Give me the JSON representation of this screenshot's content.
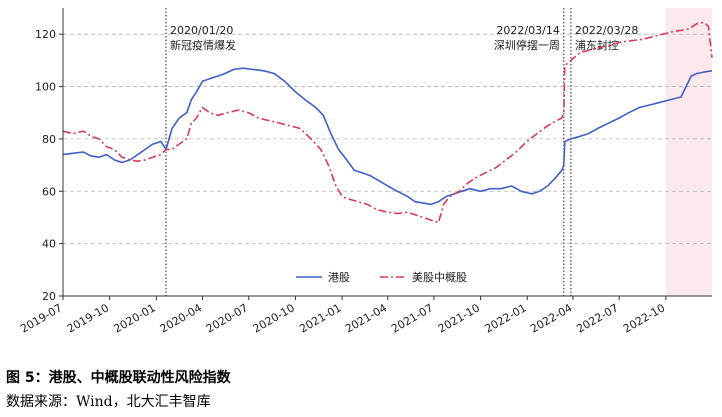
{
  "figure": {
    "title": "图 5：港股、中概股联动性风险指数",
    "source": "数据来源：Wind，北大汇丰智库"
  },
  "chart_data": {
    "type": "line",
    "xlim": [
      "2019-07-01",
      "2022-12-31"
    ],
    "ylim": [
      20,
      130
    ],
    "yticks": [
      20,
      40,
      60,
      80,
      100,
      120
    ],
    "xticks": [
      {
        "date": "2019-07-01",
        "label": "2019-07"
      },
      {
        "date": "2019-10-01",
        "label": "2019-10"
      },
      {
        "date": "2020-01-01",
        "label": "2020-01"
      },
      {
        "date": "2020-04-01",
        "label": "2020-04"
      },
      {
        "date": "2020-07-01",
        "label": "2020-07"
      },
      {
        "date": "2020-10-01",
        "label": "2020-10"
      },
      {
        "date": "2021-01-01",
        "label": "2021-01"
      },
      {
        "date": "2021-04-01",
        "label": "2021-04"
      },
      {
        "date": "2021-07-01",
        "label": "2021-07"
      },
      {
        "date": "2021-10-01",
        "label": "2021-10"
      },
      {
        "date": "2022-01-01",
        "label": "2022-01"
      },
      {
        "date": "2022-04-01",
        "label": "2022-04"
      },
      {
        "date": "2022-07-01",
        "label": "2022-07"
      },
      {
        "date": "2022-10-01",
        "label": "2022-10"
      }
    ],
    "grid": "horizontal-dashed",
    "legend_position": "bottom-center",
    "shaded_region": {
      "from": "2022-10-01",
      "to": "2022-12-31",
      "color": "#fbe9ec"
    },
    "events": [
      {
        "date": "2020-01-20",
        "label_line1": "2020/01/20",
        "label_line2": "新冠疫情爆发",
        "label_side": "right"
      },
      {
        "date": "2022-03-14",
        "label_line1": "2022/03/14",
        "label_line2": "深圳停摆一周",
        "label_side": "left"
      },
      {
        "date": "2022-03-28",
        "label_line1": "2022/03/28",
        "label_line2": "浦东封控",
        "label_side": "right"
      }
    ],
    "series": [
      {
        "name": "港股",
        "color": "#3f5fc9",
        "style": "solid",
        "points": [
          [
            "2019-07-01",
            74
          ],
          [
            "2019-07-20",
            74.5
          ],
          [
            "2019-08-10",
            75
          ],
          [
            "2019-08-25",
            73.5
          ],
          [
            "2019-09-10",
            73
          ],
          [
            "2019-09-25",
            74
          ],
          [
            "2019-10-10",
            72
          ],
          [
            "2019-10-25",
            71
          ],
          [
            "2019-11-10",
            72
          ],
          [
            "2019-11-25",
            74
          ],
          [
            "2019-12-10",
            76
          ],
          [
            "2019-12-25",
            78
          ],
          [
            "2020-01-10",
            79
          ],
          [
            "2020-01-20",
            76
          ],
          [
            "2020-02-01",
            84
          ],
          [
            "2020-02-15",
            88
          ],
          [
            "2020-03-01",
            90
          ],
          [
            "2020-03-10",
            95
          ],
          [
            "2020-03-20",
            98
          ],
          [
            "2020-04-01",
            102
          ],
          [
            "2020-04-15",
            103
          ],
          [
            "2020-05-01",
            104
          ],
          [
            "2020-05-15",
            105
          ],
          [
            "2020-06-01",
            106.5
          ],
          [
            "2020-06-20",
            107
          ],
          [
            "2020-07-10",
            106.5
          ],
          [
            "2020-07-31",
            106
          ],
          [
            "2020-08-20",
            105
          ],
          [
            "2020-09-10",
            102
          ],
          [
            "2020-10-01",
            98
          ],
          [
            "2020-10-20",
            95
          ],
          [
            "2020-11-10",
            92
          ],
          [
            "2020-11-25",
            89
          ],
          [
            "2020-12-10",
            82
          ],
          [
            "2020-12-25",
            76
          ],
          [
            "2021-01-10",
            72
          ],
          [
            "2021-01-25",
            68
          ],
          [
            "2021-02-10",
            67
          ],
          [
            "2021-02-25",
            66
          ],
          [
            "2021-03-15",
            64
          ],
          [
            "2021-04-01",
            62
          ],
          [
            "2021-04-20",
            60
          ],
          [
            "2021-05-10",
            58
          ],
          [
            "2021-05-25",
            56
          ],
          [
            "2021-06-10",
            55.5
          ],
          [
            "2021-06-25",
            55
          ],
          [
            "2021-07-10",
            56
          ],
          [
            "2021-07-25",
            58
          ],
          [
            "2021-08-10",
            59
          ],
          [
            "2021-08-25",
            60
          ],
          [
            "2021-09-10",
            61
          ],
          [
            "2021-10-01",
            60
          ],
          [
            "2021-10-20",
            61
          ],
          [
            "2021-11-10",
            61
          ],
          [
            "2021-12-01",
            62
          ],
          [
            "2021-12-20",
            60
          ],
          [
            "2022-01-10",
            59
          ],
          [
            "2022-01-25",
            60
          ],
          [
            "2022-02-10",
            62
          ],
          [
            "2022-02-25",
            65
          ],
          [
            "2022-03-10",
            68
          ],
          [
            "2022-03-14",
            70
          ],
          [
            "2022-03-16",
            79
          ],
          [
            "2022-03-28",
            80
          ],
          [
            "2022-04-15",
            81
          ],
          [
            "2022-05-01",
            82
          ],
          [
            "2022-05-20",
            84
          ],
          [
            "2022-06-10",
            86
          ],
          [
            "2022-07-01",
            88
          ],
          [
            "2022-07-20",
            90
          ],
          [
            "2022-08-10",
            92
          ],
          [
            "2022-08-31",
            93
          ],
          [
            "2022-09-20",
            94
          ],
          [
            "2022-10-10",
            95
          ],
          [
            "2022-10-31",
            96
          ],
          [
            "2022-11-10",
            100
          ],
          [
            "2022-11-20",
            104
          ],
          [
            "2022-12-01",
            105
          ],
          [
            "2022-12-15",
            105.5
          ],
          [
            "2022-12-31",
            106
          ]
        ]
      },
      {
        "name": "美股中概股",
        "color": "#d93a5a",
        "style": "dashdot",
        "points": [
          [
            "2019-07-01",
            83
          ],
          [
            "2019-07-20",
            82
          ],
          [
            "2019-08-10",
            83
          ],
          [
            "2019-08-25",
            81
          ],
          [
            "2019-09-10",
            80
          ],
          [
            "2019-09-25",
            77
          ],
          [
            "2019-10-10",
            76
          ],
          [
            "2019-10-25",
            73
          ],
          [
            "2019-11-10",
            72
          ],
          [
            "2019-11-25",
            71.5
          ],
          [
            "2019-12-10",
            72
          ],
          [
            "2019-12-25",
            73
          ],
          [
            "2020-01-10",
            74
          ],
          [
            "2020-01-20",
            76
          ],
          [
            "2020-02-01",
            76
          ],
          [
            "2020-02-15",
            78
          ],
          [
            "2020-03-01",
            80
          ],
          [
            "2020-03-10",
            86
          ],
          [
            "2020-03-20",
            88
          ],
          [
            "2020-04-01",
            92
          ],
          [
            "2020-04-15",
            90
          ],
          [
            "2020-05-01",
            89
          ],
          [
            "2020-05-20",
            90
          ],
          [
            "2020-06-10",
            91
          ],
          [
            "2020-07-01",
            90
          ],
          [
            "2020-07-20",
            88
          ],
          [
            "2020-08-10",
            87
          ],
          [
            "2020-09-01",
            86
          ],
          [
            "2020-09-20",
            85
          ],
          [
            "2020-10-10",
            84
          ],
          [
            "2020-11-01",
            80
          ],
          [
            "2020-11-20",
            76
          ],
          [
            "2020-12-05",
            70
          ],
          [
            "2020-12-20",
            62
          ],
          [
            "2021-01-01",
            58
          ],
          [
            "2021-01-15",
            57
          ],
          [
            "2021-02-01",
            56
          ],
          [
            "2021-02-20",
            55
          ],
          [
            "2021-03-10",
            53
          ],
          [
            "2021-04-01",
            52
          ],
          [
            "2021-04-20",
            51.5
          ],
          [
            "2021-05-10",
            52
          ],
          [
            "2021-05-25",
            51
          ],
          [
            "2021-06-10",
            50
          ],
          [
            "2021-06-25",
            49
          ],
          [
            "2021-07-10",
            48
          ],
          [
            "2021-07-20",
            55
          ],
          [
            "2021-08-01",
            58
          ],
          [
            "2021-08-20",
            60
          ],
          [
            "2021-09-05",
            63
          ],
          [
            "2021-09-20",
            65
          ],
          [
            "2021-10-10",
            67
          ],
          [
            "2021-10-31",
            69
          ],
          [
            "2021-11-20",
            72
          ],
          [
            "2021-12-10",
            75
          ],
          [
            "2021-12-31",
            79
          ],
          [
            "2022-01-20",
            82
          ],
          [
            "2022-02-10",
            85
          ],
          [
            "2022-02-28",
            87
          ],
          [
            "2022-03-10",
            88
          ],
          [
            "2022-03-14",
            90
          ],
          [
            "2022-03-16",
            108
          ],
          [
            "2022-03-28",
            110
          ],
          [
            "2022-04-15",
            113
          ],
          [
            "2022-05-05",
            114
          ],
          [
            "2022-05-25",
            115
          ],
          [
            "2022-06-15",
            116
          ],
          [
            "2022-07-05",
            117
          ],
          [
            "2022-07-25",
            117.5
          ],
          [
            "2022-08-15",
            118
          ],
          [
            "2022-09-05",
            119
          ],
          [
            "2022-09-25",
            120
          ],
          [
            "2022-10-15",
            121
          ],
          [
            "2022-11-01",
            121.5
          ],
          [
            "2022-11-15",
            122
          ],
          [
            "2022-12-01",
            124
          ],
          [
            "2022-12-15",
            124.5
          ],
          [
            "2022-12-24",
            123
          ],
          [
            "2022-12-31",
            111
          ]
        ]
      }
    ]
  }
}
